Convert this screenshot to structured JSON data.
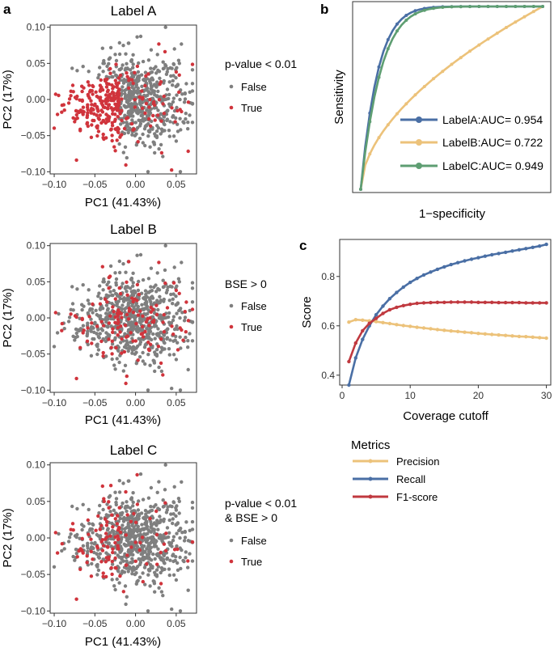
{
  "panel_letters": {
    "a": "a",
    "b": "b",
    "c": "c"
  },
  "chart_data": [
    {
      "type": "scatter",
      "panel": "a",
      "title": "Label A",
      "xlabel": "PC1 (41.43%)",
      "ylabel": "PC2 (17%)",
      "xlim": [
        -0.105,
        0.075
      ],
      "ylim": [
        -0.103,
        0.103
      ],
      "xticks": [
        -0.1,
        -0.05,
        0.0,
        0.05
      ],
      "xtick_labels": [
        "−0.10",
        "−0.05",
        "0.00",
        "0.05"
      ],
      "yticks": [
        -0.1,
        -0.05,
        0.0,
        0.05,
        0.1
      ],
      "ytick_labels": [
        "−0.10",
        "−0.05",
        "0.00",
        "0.05",
        "0.10"
      ],
      "legend": {
        "title": "p-value < 0.01",
        "placement": "right",
        "entries": [
          "False",
          "True"
        ]
      },
      "series": [
        {
          "name": "False",
          "color": "#7f7f7f",
          "approx_count": 620
        },
        {
          "name": "True",
          "color": "#d0343c",
          "approx_count": 230
        }
      ],
      "grid": false
    },
    {
      "type": "scatter",
      "panel": "a",
      "title": "Label B",
      "xlabel": "PC1 (41.43%)",
      "ylabel": "PC2 (17%)",
      "xlim": [
        -0.105,
        0.075
      ],
      "ylim": [
        -0.103,
        0.103
      ],
      "xticks": [
        -0.1,
        -0.05,
        0.0,
        0.05
      ],
      "xtick_labels": [
        "−0.10",
        "−0.05",
        "0.00",
        "0.05"
      ],
      "yticks": [
        -0.1,
        -0.05,
        0.0,
        0.05,
        0.1
      ],
      "ytick_labels": [
        "−0.10",
        "−0.05",
        "0.00",
        "0.05",
        "0.10"
      ],
      "legend": {
        "title": "BSE > 0",
        "placement": "right",
        "entries": [
          "False",
          "True"
        ]
      },
      "series": [
        {
          "name": "False",
          "color": "#7f7f7f",
          "approx_count": 700
        },
        {
          "name": "True",
          "color": "#d0343c",
          "approx_count": 120
        }
      ],
      "grid": false
    },
    {
      "type": "scatter",
      "panel": "a",
      "title": "Label C",
      "xlabel": "PC1 (41.43%)",
      "ylabel": "PC2 (17%)",
      "xlim": [
        -0.105,
        0.075
      ],
      "ylim": [
        -0.103,
        0.103
      ],
      "xticks": [
        -0.1,
        -0.05,
        0.0,
        0.05
      ],
      "xtick_labels": [
        "−0.10",
        "−0.05",
        "0.00",
        "0.05"
      ],
      "yticks": [
        -0.1,
        -0.05,
        0.0,
        0.05,
        0.1
      ],
      "ytick_labels": [
        "−0.10",
        "−0.05",
        "0.00",
        "0.05",
        "0.10"
      ],
      "legend": {
        "title": "p-value < 0.01",
        "title2": "& BSE > 0",
        "placement": "right",
        "entries": [
          "False",
          "True"
        ]
      },
      "series": [
        {
          "name": "False",
          "color": "#7f7f7f",
          "approx_count": 740
        },
        {
          "name": "True",
          "color": "#d0343c",
          "approx_count": 80
        }
      ],
      "grid": false
    },
    {
      "type": "line",
      "panel": "b",
      "xlabel": "1−specificity",
      "ylabel": "Sensitivity",
      "xlim": [
        0,
        1
      ],
      "ylim": [
        0,
        1
      ],
      "legend": {
        "placement": "bottom-right"
      },
      "series": [
        {
          "name": "LabelA:AUC= 0.954",
          "color": "#4a6fa5",
          "auc": 0.954
        },
        {
          "name": "LabelB:AUC= 0.722",
          "color": "#ecc27a",
          "auc": 0.722
        },
        {
          "name": "LabelC:AUC= 0.949",
          "color": "#5e9e72",
          "auc": 0.949
        }
      ],
      "grid": false
    },
    {
      "type": "line",
      "panel": "c",
      "xlabel": "Coverage cutoff",
      "ylabel": "Score",
      "xlim": [
        0,
        31
      ],
      "ylim": [
        0.36,
        0.95
      ],
      "xticks": [
        0,
        10,
        20,
        30
      ],
      "xtick_labels": [
        "0",
        "10",
        "20",
        "30"
      ],
      "yticks": [
        0.4,
        0.6,
        0.8
      ],
      "ytick_labels": [
        "0.4",
        "0.6",
        "0.8"
      ],
      "legend": {
        "title": "Metrics",
        "placement": "bottom"
      },
      "x": [
        1,
        2,
        3,
        4,
        5,
        6,
        7,
        8,
        9,
        10,
        11,
        12,
        13,
        14,
        15,
        16,
        17,
        18,
        19,
        20,
        21,
        22,
        23,
        24,
        25,
        26,
        27,
        28,
        29,
        30
      ],
      "series": [
        {
          "name": "Precision",
          "color": "#ecc27a",
          "values": [
            0.615,
            0.625,
            0.623,
            0.62,
            0.617,
            0.613,
            0.609,
            0.605,
            0.601,
            0.598,
            0.594,
            0.591,
            0.588,
            0.585,
            0.582,
            0.579,
            0.577,
            0.574,
            0.572,
            0.569,
            0.567,
            0.565,
            0.563,
            0.561,
            0.559,
            0.557,
            0.556,
            0.554,
            0.552,
            0.55
          ]
        },
        {
          "name": "Recall",
          "color": "#4a6fa5",
          "values": [
            0.36,
            0.47,
            0.545,
            0.6,
            0.645,
            0.68,
            0.71,
            0.735,
            0.757,
            0.776,
            0.792,
            0.806,
            0.818,
            0.829,
            0.839,
            0.848,
            0.856,
            0.863,
            0.87,
            0.876,
            0.882,
            0.888,
            0.893,
            0.898,
            0.903,
            0.908,
            0.913,
            0.918,
            0.923,
            0.93
          ]
        },
        {
          "name": "F1-score",
          "color": "#c0393f",
          "values": [
            0.455,
            0.53,
            0.58,
            0.61,
            0.63,
            0.65,
            0.665,
            0.675,
            0.682,
            0.687,
            0.691,
            0.693,
            0.694,
            0.695,
            0.695,
            0.696,
            0.696,
            0.696,
            0.696,
            0.695,
            0.695,
            0.695,
            0.694,
            0.694,
            0.694,
            0.694,
            0.693,
            0.693,
            0.693,
            0.693
          ]
        }
      ],
      "grid": false
    }
  ],
  "colors": {
    "false_gray": "#7f7f7f",
    "true_red": "#d0343c",
    "axis": "#333333"
  }
}
